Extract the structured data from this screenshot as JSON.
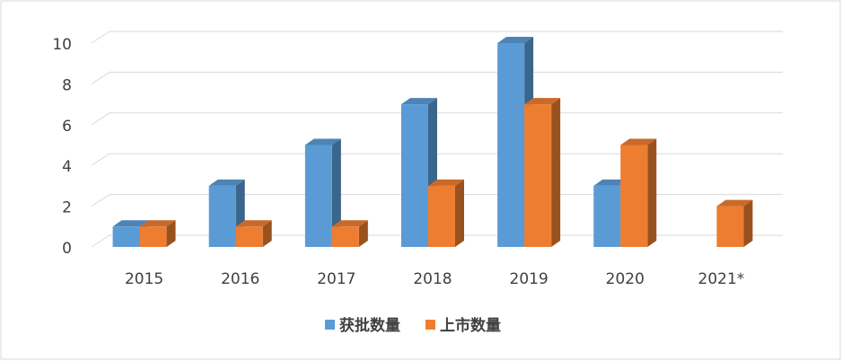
{
  "chart_data": {
    "type": "bar3d",
    "categories": [
      "2015",
      "2016",
      "2017",
      "2018",
      "2019",
      "2020",
      "2021*"
    ],
    "series": [
      {
        "name": "获批数量",
        "color": "#5b9bd5",
        "values": [
          1,
          3,
          5,
          7,
          10,
          3,
          null
        ]
      },
      {
        "name": "上市数量",
        "color": "#ed7d31",
        "values": [
          1,
          1,
          1,
          3,
          7,
          5,
          2
        ]
      }
    ],
    "ylim": [
      0,
      10
    ],
    "yticks": [
      0,
      2,
      4,
      6,
      8,
      10
    ],
    "grid": true,
    "legend": "bottom"
  }
}
